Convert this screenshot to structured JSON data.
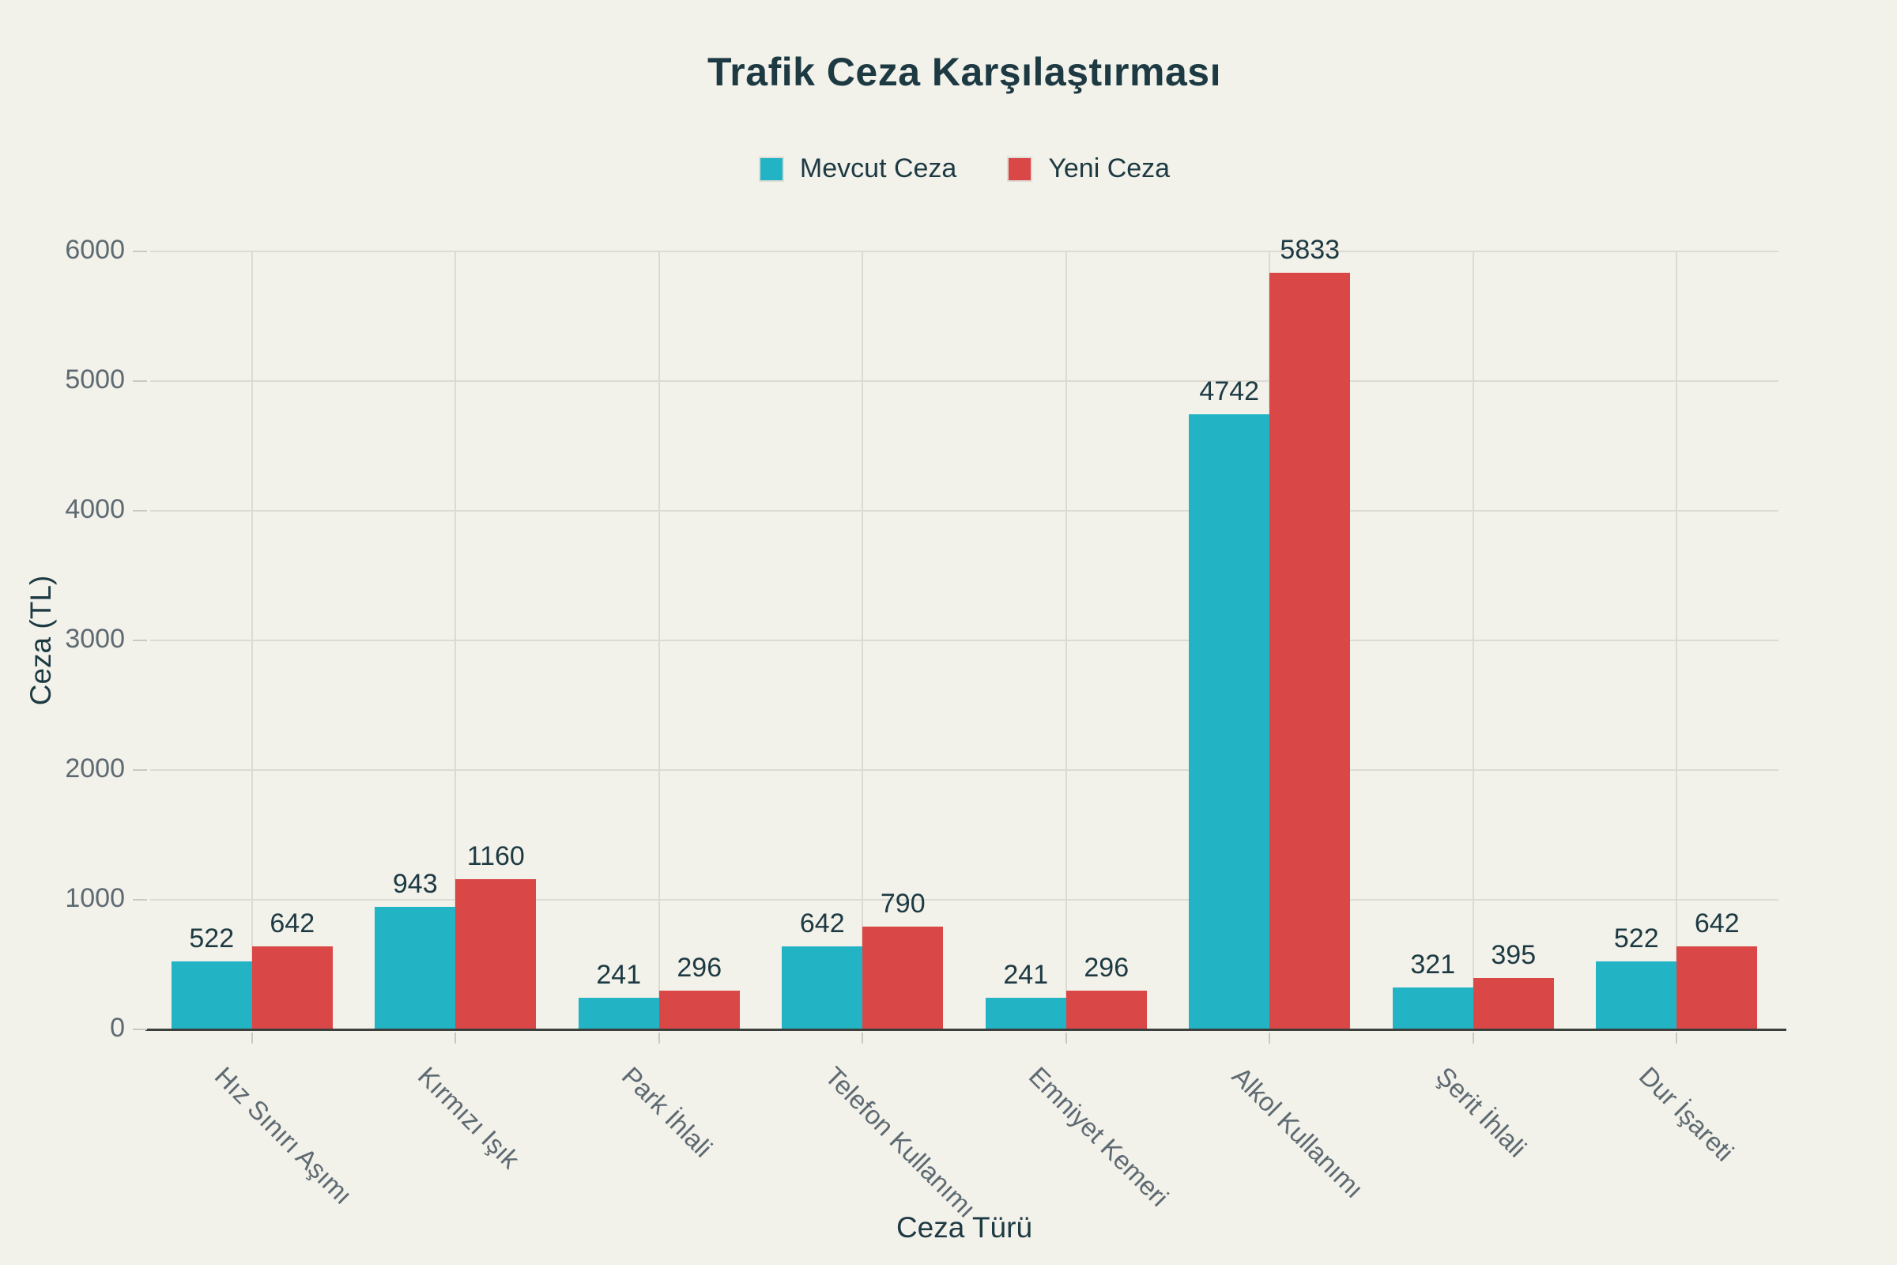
{
  "title": "Trafik Ceza Karşılaştırması",
  "chart_data": {
    "type": "bar",
    "title": "Trafik Ceza Karşılaştırması",
    "xlabel": "Ceza Türü",
    "ylabel": "Ceza (TL)",
    "categories": [
      "Hız Sınırı Aşımı",
      "Kırmızı Işık",
      "Park İhlali",
      "Telefon Kullanımı",
      "Emniyet Kemeri",
      "Alkol Kullanımı",
      "Şerit İhlali",
      "Dur İşareti"
    ],
    "series": [
      {
        "name": "Mevcut Ceza",
        "color": "#22b4c5",
        "values": [
          522,
          943,
          241,
          642,
          241,
          4742,
          321,
          522
        ]
      },
      {
        "name": "Yeni Ceza",
        "color": "#da4747",
        "values": [
          642,
          1160,
          296,
          790,
          296,
          5833,
          395,
          642
        ]
      }
    ],
    "ylim": [
      0,
      6000
    ],
    "yticks": [
      0,
      1000,
      2000,
      3000,
      4000,
      5000,
      6000
    ],
    "grid": true,
    "legend_position": "top-center",
    "value_labels": true
  },
  "colors": {
    "background": "#f2f1ea",
    "text_dark": "#1d3a43",
    "tick_text": "#5e6a72",
    "gridline": "#dcdbd3",
    "axis_line": "#3b403c",
    "tick_mark": "#c9c8c1"
  }
}
